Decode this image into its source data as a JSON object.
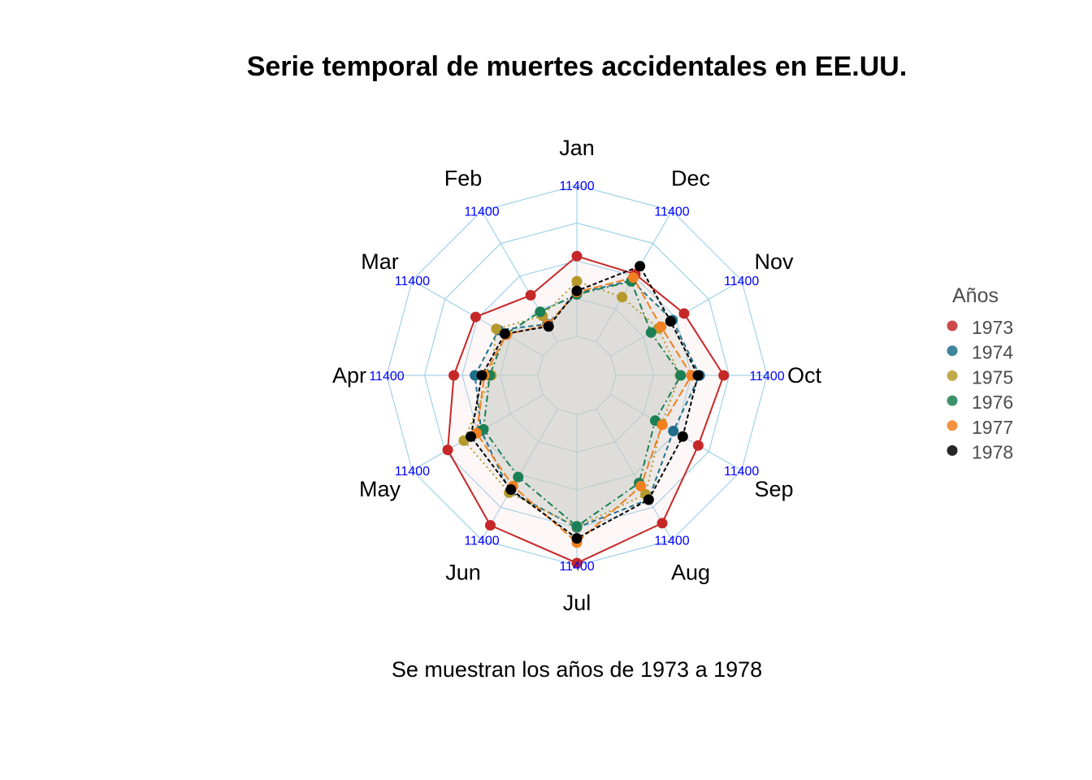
{
  "chart_data": {
    "type": "radar",
    "title": "Serie temporal de muertes accidentales en EE.UU.",
    "caption": "Se muestran los años de 1973 a 1978",
    "legend_title": "Años",
    "legend_position": "right",
    "axis_label": "11400",
    "categories": [
      "Jan",
      "Feb",
      "Mar",
      "Apr",
      "May",
      "Jun",
      "Jul",
      "Aug",
      "Sep",
      "Oct",
      "Nov",
      "Dec"
    ],
    "rlim": [
      6300,
      11400
    ],
    "grid_levels": 5,
    "series": [
      {
        "name": "1973",
        "color": "#c62828",
        "dash": "",
        "fill": "#f2d0d0",
        "fill_opacity": 0.18,
        "values": [
          9007,
          8106,
          8928,
          9137,
          10017,
          10826,
          11317,
          10744,
          9713,
          9938,
          9161,
          8927
        ]
      },
      {
        "name": "1974",
        "color": "#1f6e8c",
        "dash": "6,4",
        "fill": "#c9c9c0",
        "fill_opacity": 0.15,
        "values": [
          7750,
          6981,
          8038,
          8422,
          8714,
          9512,
          10120,
          9823,
          8743,
          9129,
          8710,
          8680
        ]
      },
      {
        "name": "1975",
        "color": "#b59a2b",
        "dash": "2,4",
        "fill": "#c9c9c0",
        "fill_opacity": 0.15,
        "values": [
          8162,
          7306,
          8124,
          7870,
          9387,
          9556,
          10093,
          9620,
          8285,
          8466,
          8160,
          8034
        ]
      },
      {
        "name": "1976",
        "color": "#1b7f55",
        "dash": "8,4,2,4",
        "fill": "#c9c9c0",
        "fill_opacity": 0.15,
        "values": [
          7717,
          7461,
          7767,
          7925,
          8623,
          8945,
          10078,
          9179,
          8037,
          8488,
          7874,
          8647
        ]
      },
      {
        "name": "1977",
        "color": "#f08020",
        "dash": "10,4",
        "fill": "#c9c9c0",
        "fill_opacity": 0.15,
        "values": [
          7792,
          6957,
          7726,
          8106,
          8890,
          9299,
          10625,
          9302,
          8314,
          8850,
          8265,
          8796
        ]
      },
      {
        "name": "1978",
        "color": "#000000",
        "dash": "5,3",
        "fill": "#c9c9c0",
        "fill_opacity": 0.15,
        "values": [
          7836,
          6892,
          7791,
          8192,
          9115,
          9434,
          10484,
          9827,
          9110,
          9070,
          8633,
          9240
        ]
      }
    ]
  }
}
